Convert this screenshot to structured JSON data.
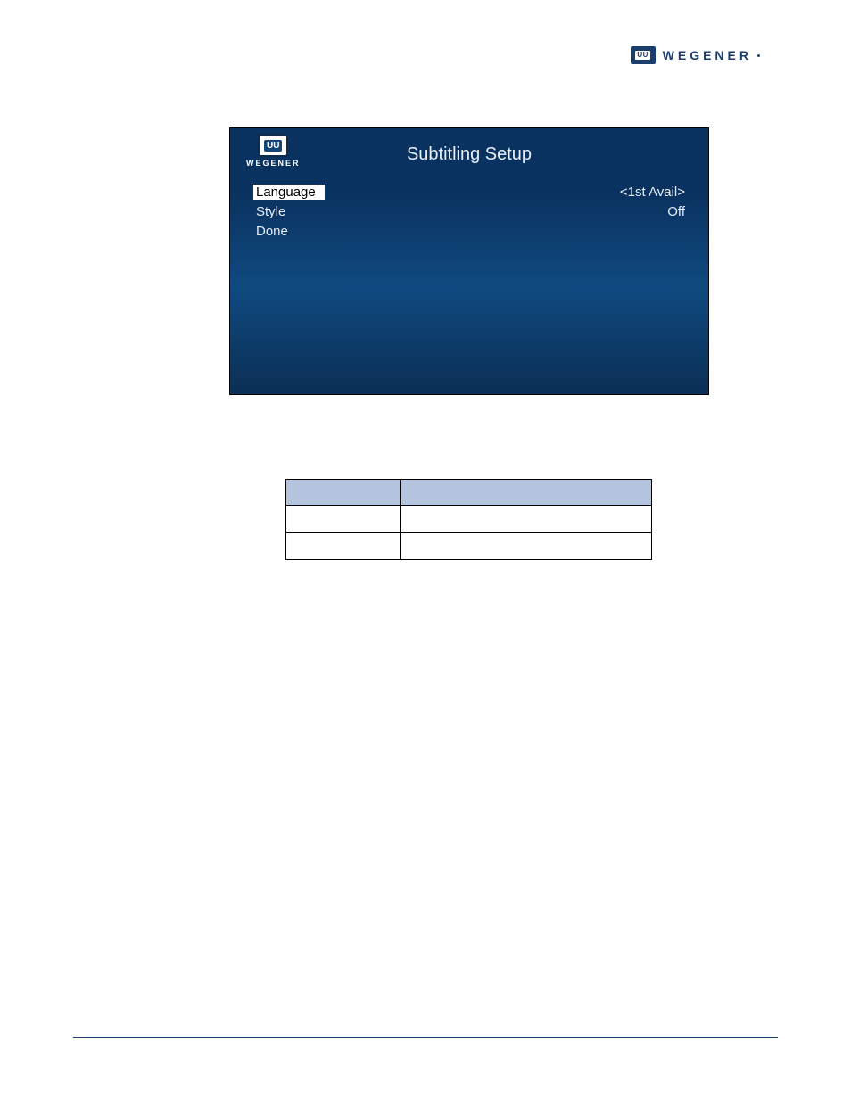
{
  "brand": {
    "uu": "UU",
    "name": "WEGENER"
  },
  "device_screen": {
    "title": "Subtitling Setup",
    "logo_uu": "UU",
    "logo_text": "WEGENER",
    "rows": [
      {
        "label": "Language",
        "value": "<1st Avail>",
        "selected": true
      },
      {
        "label": "Style",
        "value": "Off",
        "selected": false
      },
      {
        "label": "Done",
        "value": "",
        "selected": false
      }
    ]
  },
  "table": {
    "headers": [
      "",
      ""
    ],
    "rows": [
      [
        "",
        ""
      ],
      [
        "",
        ""
      ]
    ],
    "header_bg": "#b4c3de"
  }
}
